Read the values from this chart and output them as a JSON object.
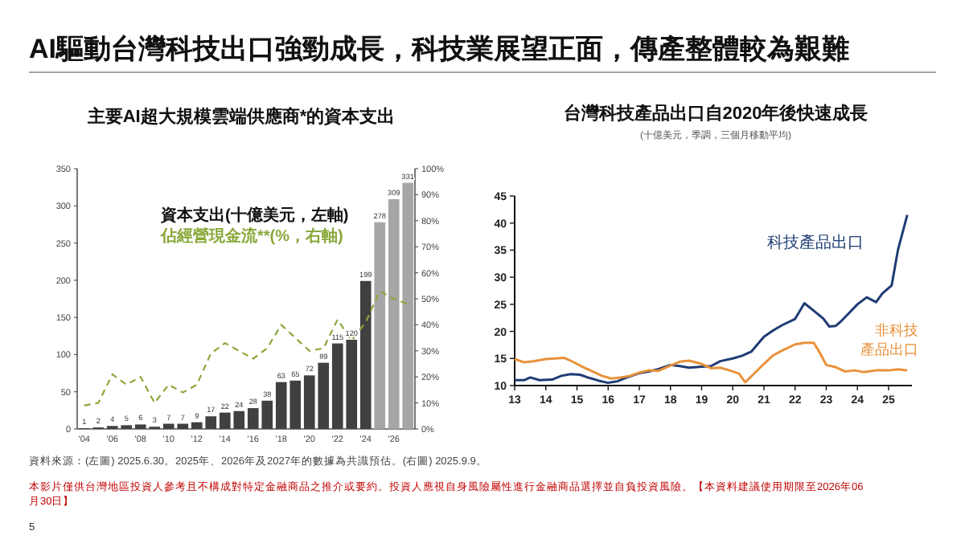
{
  "chart_data": [
    {
      "type": "other",
      "title": "AI驅動台灣科技出口強勁成長，科技業展望正面，傳產整體較為艱難",
      "annotations": [
        "資料來源：(左圖) 2025.6.30。2025年、2026年及2027年的數據為共識預估。(右圖) 2025.9.9。",
        "本影片僅供台灣地區投資人參考且不構成對特定金融商品之推介或要約。投資人應視自身風險屬性進行金融商品選擇並自負投資風險。【本資料建議使用期限至2026年06月30日】",
        "5"
      ]
    },
    {
      "type": "bar",
      "title": "主要AI超大規模雲端供應商*的資本支出",
      "categories": [
        "'04",
        null,
        "'06",
        null,
        "'08",
        null,
        "'10",
        null,
        "'12",
        null,
        "'14",
        null,
        "'16",
        null,
        "'18",
        null,
        "'20",
        null,
        "'22",
        null,
        "'24",
        null,
        "'26",
        null
      ],
      "series": [
        {
          "name": "資本支出(十億美元，左軸)",
          "type": "bar",
          "colors": [
            "#404040",
            "#404040",
            "#404040",
            "#404040",
            "#404040",
            "#404040",
            "#404040",
            "#404040",
            "#404040",
            "#404040",
            "#404040",
            "#404040",
            "#404040",
            "#404040",
            "#404040",
            "#404040",
            "#404040",
            "#404040",
            "#404040",
            "#404040",
            "#404040",
            "#a6a6a6",
            "#a6a6a6",
            "#a6a6a6"
          ],
          "values": [
            1,
            2,
            4,
            5,
            6,
            3,
            7,
            7,
            9,
            17,
            22,
            24,
            28,
            38,
            63,
            65,
            72,
            89,
            115,
            120,
            199,
            278,
            309,
            331
          ],
          "value_labels": [
            "1",
            "2",
            "4",
            "5",
            "6",
            "3",
            "7",
            "7",
            "9",
            "17",
            "22",
            "24",
            "28",
            "38",
            "63",
            "65",
            "72",
            "89",
            "115",
            "120",
            "199",
            "278",
            "309",
            "331"
          ]
        },
        {
          "name": "佔經營現金流**(%，右軸)",
          "type": "line",
          "axis": "y2",
          "color": "#8aa83a",
          "line_style": "dashed",
          "values": [
            9,
            10,
            21,
            17,
            20,
            10,
            17,
            14,
            17,
            29,
            33,
            30,
            27,
            31,
            40,
            35,
            30,
            31,
            42,
            34,
            41,
            53,
            50,
            48
          ]
        }
      ],
      "ylim": [
        0,
        350
      ],
      "yticks": [
        0,
        50,
        100,
        150,
        200,
        250,
        300,
        350
      ],
      "y2lim": [
        0,
        100
      ],
      "y2ticks": [
        {
          "value": 0,
          "label": "0%"
        },
        {
          "value": 10,
          "label": "10%"
        },
        {
          "value": 20,
          "label": "20%"
        },
        {
          "value": 30,
          "label": "30%"
        },
        {
          "value": 40,
          "label": "40%"
        },
        {
          "value": 50,
          "label": "50%"
        },
        {
          "value": 60,
          "label": "60%"
        },
        {
          "value": 70,
          "label": "70%"
        },
        {
          "value": 80,
          "label": "80%"
        },
        {
          "value": 90,
          "label": "90%"
        },
        {
          "value": 100,
          "label": "100%"
        }
      ],
      "legend": "top"
    },
    {
      "type": "line",
      "title": "台灣科技產品出口自2020年後快速成長",
      "subtitle": "(十億美元，季調，三個月移動平均)",
      "series": [
        {
          "name": "科技產品出口",
          "color": "#1f3c74",
          "x": [
            2013.0,
            2013.3,
            2013.5,
            2013.8,
            2014.2,
            2014.5,
            2014.8,
            2015.1,
            2015.4,
            2015.7,
            2016.0,
            2016.3,
            2016.6,
            2017.0,
            2017.3,
            2017.6,
            2018.0,
            2018.3,
            2018.6,
            2019.0,
            2019.3,
            2019.6,
            2020.0,
            2020.3,
            2020.6,
            2021.0,
            2021.3,
            2021.6,
            2022.0,
            2022.3,
            2022.6,
            2022.9,
            2023.1,
            2023.3,
            2023.5,
            2023.7,
            2024.0,
            2024.3,
            2024.6,
            2024.8,
            2025.1,
            2025.3,
            2025.6
          ],
          "values": [
            11,
            11,
            11.5,
            11,
            11.1,
            11.8,
            12.1,
            12,
            11.4,
            10.9,
            10.5,
            10.8,
            11.5,
            12.3,
            12.6,
            13,
            13.8,
            13.6,
            13.3,
            13.5,
            13.6,
            14.5,
            15,
            15.5,
            16.3,
            19,
            20.2,
            21.2,
            22.3,
            25.2,
            23.8,
            22.4,
            20.9,
            21,
            22,
            23.2,
            25,
            26.3,
            25.4,
            27,
            28.5,
            35,
            41.5
          ]
        },
        {
          "name": "非科技產品出口",
          "color": "#e8913a",
          "x": [
            2013.0,
            2013.3,
            2013.6,
            2014.0,
            2014.3,
            2014.6,
            2014.9,
            2015.2,
            2015.5,
            2015.8,
            2016.1,
            2016.4,
            2016.7,
            2017.0,
            2017.3,
            2017.6,
            2018.0,
            2018.3,
            2018.6,
            2019.0,
            2019.3,
            2019.6,
            2019.9,
            2020.2,
            2020.4,
            2020.7,
            2021.0,
            2021.3,
            2021.6,
            2022.0,
            2022.3,
            2022.6,
            2022.8,
            2023.0,
            2023.3,
            2023.6,
            2023.9,
            2024.2,
            2024.6,
            2025.0,
            2025.3,
            2025.6
          ],
          "values": [
            14.9,
            14.3,
            14.5,
            14.9,
            15,
            15.1,
            14.3,
            13.4,
            12.6,
            11.8,
            11.3,
            11.5,
            11.8,
            12.4,
            12.8,
            12.7,
            13.7,
            14.4,
            14.6,
            14,
            13.2,
            13.3,
            12.8,
            12.2,
            10.6,
            12.3,
            14,
            15.6,
            16.5,
            17.6,
            17.9,
            17.9,
            16,
            13.8,
            13.4,
            12.6,
            12.8,
            12.5,
            12.8,
            12.8,
            13,
            12.8
          ]
        }
      ],
      "xlim": [
        2013,
        2025.75
      ],
      "xticks": [
        {
          "value": 2013,
          "label": "13"
        },
        {
          "value": 2014,
          "label": "14"
        },
        {
          "value": 2015,
          "label": "15"
        },
        {
          "value": 2016,
          "label": "16"
        },
        {
          "value": 2017,
          "label": "17"
        },
        {
          "value": 2018,
          "label": "18"
        },
        {
          "value": 2019,
          "label": "19"
        },
        {
          "value": 2020,
          "label": "20"
        },
        {
          "value": 2021,
          "label": "21"
        },
        {
          "value": 2022,
          "label": "22"
        },
        {
          "value": 2023,
          "label": "23"
        },
        {
          "value": 2024,
          "label": "24"
        },
        {
          "value": 2025,
          "label": "25"
        }
      ],
      "ylim": [
        10,
        45
      ],
      "yticks": [
        10,
        15,
        20,
        25,
        30,
        35,
        40,
        45
      ]
    }
  ]
}
